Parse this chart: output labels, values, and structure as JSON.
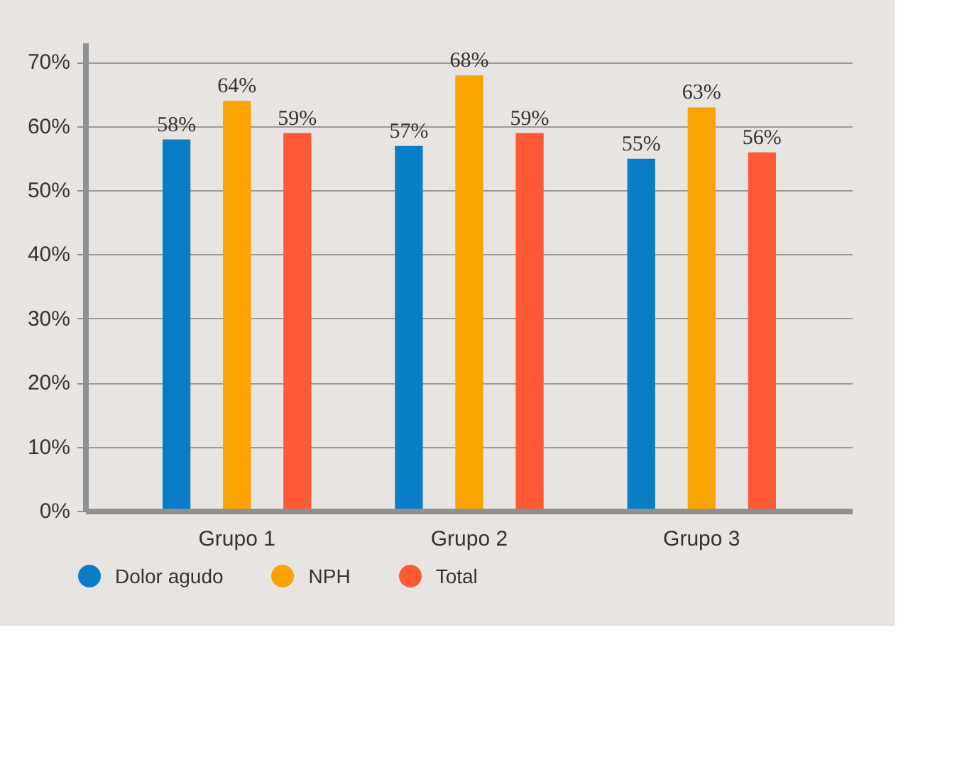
{
  "chart_data": {
    "type": "bar",
    "categories": [
      "Grupo 1",
      "Grupo 2",
      "Grupo 3"
    ],
    "series": [
      {
        "name": "Dolor agudo",
        "color": "#0a7dc9",
        "values": [
          58,
          57,
          55
        ]
      },
      {
        "name": "NPH",
        "color": "#fba300",
        "values": [
          64,
          68,
          63
        ]
      },
      {
        "name": "Total",
        "color": "#fd5a35",
        "values": [
          59,
          59,
          56
        ]
      }
    ],
    "ylim": [
      0,
      73
    ],
    "yticks": [
      {
        "value": 0,
        "label": "0%"
      },
      {
        "value": 10,
        "label": "10%"
      },
      {
        "value": 20,
        "label": "20%"
      },
      {
        "value": 30,
        "label": "30%"
      },
      {
        "value": 40,
        "label": "40%"
      },
      {
        "value": 50,
        "label": "50%"
      },
      {
        "value": 60,
        "label": "60%"
      },
      {
        "value": 70,
        "label": "70%"
      }
    ],
    "value_labels": [
      [
        "58%",
        "57%",
        "55%"
      ],
      [
        "64%",
        "68%",
        "63%"
      ],
      [
        "59%",
        "59%",
        "56%"
      ]
    ],
    "grid": "y",
    "legend": "bottom"
  }
}
